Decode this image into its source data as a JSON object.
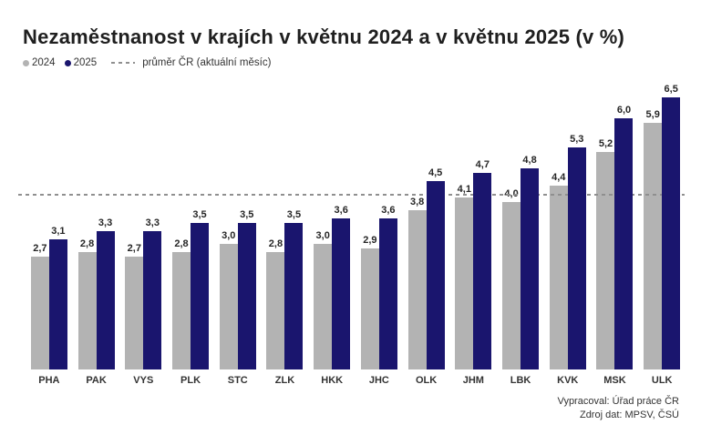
{
  "title": "Nezaměstnanost v krajích v květnu 2024 a v květnu 2025 (v %)",
  "legend": {
    "series2024_label": "2024",
    "series2025_label": "2025",
    "avg_label": "průměr ČR (aktuální měsíc)"
  },
  "footer": {
    "line1": "Vypracoval: Úřad práce ČR",
    "line2": "Zdroj dat: MPSV, ČSÚ"
  },
  "colors": {
    "bar_2024": "#b3b3b3",
    "bar_2025": "#1a156e",
    "avg_line": "#8f8f8f",
    "label_text": "#262626"
  },
  "chart_data": {
    "type": "bar",
    "categories": [
      "PHA",
      "PAK",
      "VYS",
      "PLK",
      "STC",
      "ZLK",
      "HKK",
      "JHC",
      "OLK",
      "JHM",
      "LBK",
      "KVK",
      "MSK",
      "ULK"
    ],
    "series": [
      {
        "name": "2024",
        "color": "#b3b3b3",
        "values": [
          2.7,
          2.8,
          2.7,
          2.8,
          3.0,
          2.8,
          3.0,
          2.9,
          3.8,
          4.1,
          4.0,
          4.4,
          5.2,
          5.9
        ]
      },
      {
        "name": "2025",
        "color": "#1a156e",
        "values": [
          3.1,
          3.3,
          3.3,
          3.5,
          3.5,
          3.5,
          3.6,
          3.6,
          4.5,
          4.7,
          4.8,
          5.3,
          6.0,
          6.5
        ]
      }
    ],
    "avg_line_value": 4.2,
    "decimal_separator": ",",
    "value_labels": true,
    "ylim": [
      0,
      6.9
    ],
    "grid": false,
    "legend_position": "top-left",
    "xlabel": "",
    "ylabel": ""
  }
}
